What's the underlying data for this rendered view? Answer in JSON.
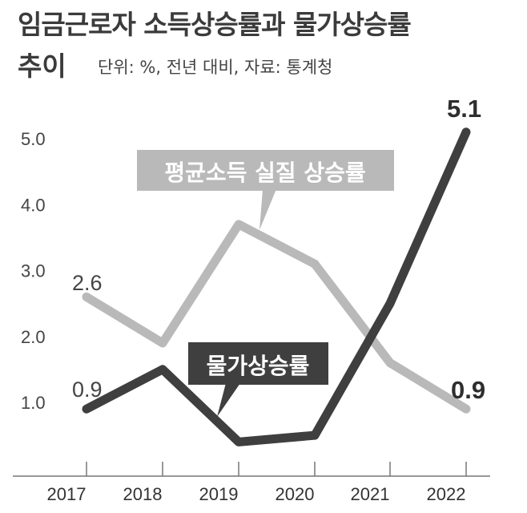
{
  "title_line1": "임금근로자 소득상승률과 물가상승률",
  "title_line2": "추이",
  "unit_note": "단위: %, 전년 대비, 자료: 통계청",
  "colors": {
    "income": "#b9b9b9",
    "price": "#3f3f3f",
    "axis": "#777777"
  },
  "chart_data": {
    "type": "line",
    "x": [
      "2017",
      "2018",
      "2019",
      "2020",
      "2021",
      "2022"
    ],
    "yticks": [
      "1.0",
      "2.0",
      "3.0",
      "4.0",
      "5.0"
    ],
    "ylim": [
      0.1,
      5.6
    ],
    "series": [
      {
        "name": "평균소득 실질 상승률",
        "values": [
          2.6,
          1.9,
          3.7,
          3.1,
          1.6,
          0.9
        ]
      },
      {
        "name": "물가상승률",
        "values": [
          0.9,
          1.5,
          0.4,
          0.5,
          2.5,
          5.1
        ]
      }
    ],
    "data_labels": {
      "income_first": "2.6",
      "price_first": "0.9",
      "price_last": "5.1",
      "income_last": "0.9"
    },
    "callouts": {
      "income": "평균소득 실질 상승률",
      "price": "물가상승률"
    },
    "grid": false
  }
}
